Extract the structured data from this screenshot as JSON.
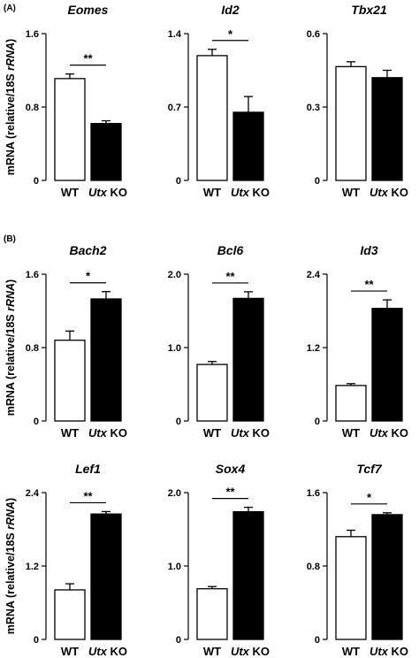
{
  "panels": [
    {
      "label": "(A)"
    },
    {
      "label": "(B)"
    }
  ],
  "ylabel": {
    "prefix": "mRNA (relative/18S ",
    "italic": "rRNA",
    "suffix": ")"
  },
  "categories": [
    {
      "plain": "WT",
      "italic": ""
    },
    {
      "plain": " KO",
      "italic": "Utx"
    }
  ],
  "colors": {
    "wt_fill": "#ffffff",
    "ko_fill": "#000000",
    "stroke": "#000000"
  },
  "chart_data": [
    {
      "type": "bar",
      "title": "Eomes",
      "ylim": [
        0,
        1.6
      ],
      "yticks": [
        "0",
        "0.8",
        "1.6"
      ],
      "series": [
        {
          "name": "WT",
          "values": [
            1.11
          ]
        },
        {
          "name": "Utx KO",
          "values": [
            0.62
          ]
        }
      ],
      "errors": [
        0.05,
        0.03
      ],
      "significance": "**"
    },
    {
      "type": "bar",
      "title": "Id2",
      "ylim": [
        0,
        1.4
      ],
      "yticks": [
        "0",
        "0.7",
        "1.4"
      ],
      "series": [
        {
          "name": "WT",
          "values": [
            1.19
          ]
        },
        {
          "name": "Utx KO",
          "values": [
            0.65
          ]
        }
      ],
      "errors": [
        0.06,
        0.15
      ],
      "significance": "*"
    },
    {
      "type": "bar",
      "title": "Tbx21",
      "ylim": [
        0,
        0.6
      ],
      "yticks": [
        "0",
        "0.3",
        "0.6"
      ],
      "series": [
        {
          "name": "WT",
          "values": [
            0.465
          ]
        },
        {
          "name": "Utx KO",
          "values": [
            0.42
          ]
        }
      ],
      "errors": [
        0.02,
        0.03
      ],
      "significance": ""
    },
    {
      "type": "bar",
      "title": "Bach2",
      "ylim": [
        0,
        1.6
      ],
      "yticks": [
        "0",
        "0.8",
        "1.6"
      ],
      "series": [
        {
          "name": "WT",
          "values": [
            0.88
          ]
        },
        {
          "name": "Utx KO",
          "values": [
            1.33
          ]
        }
      ],
      "errors": [
        0.1,
        0.08
      ],
      "significance": "*"
    },
    {
      "type": "bar",
      "title": "Bcl6",
      "ylim": [
        0,
        2.0
      ],
      "yticks": [
        "0",
        "1.0",
        "2.0"
      ],
      "series": [
        {
          "name": "WT",
          "values": [
            0.77
          ]
        },
        {
          "name": "Utx KO",
          "values": [
            1.67
          ]
        }
      ],
      "errors": [
        0.04,
        0.09
      ],
      "significance": "**"
    },
    {
      "type": "bar",
      "title": "Id3",
      "ylim": [
        0,
        2.4
      ],
      "yticks": [
        "0",
        "1.2",
        "2.4"
      ],
      "series": [
        {
          "name": "WT",
          "values": [
            0.58
          ]
        },
        {
          "name": "Utx KO",
          "values": [
            1.84
          ]
        }
      ],
      "errors": [
        0.03,
        0.14
      ],
      "significance": "**"
    },
    {
      "type": "bar",
      "title": "Lef1",
      "ylim": [
        0,
        2.4
      ],
      "yticks": [
        "0",
        "1.2",
        "2.4"
      ],
      "series": [
        {
          "name": "WT",
          "values": [
            0.81
          ]
        },
        {
          "name": "Utx KO",
          "values": [
            2.05
          ]
        }
      ],
      "errors": [
        0.1,
        0.04
      ],
      "significance": "**"
    },
    {
      "type": "bar",
      "title": "Sox4",
      "ylim": [
        0,
        2.0
      ],
      "yticks": [
        "0",
        "1.0",
        "2.0"
      ],
      "series": [
        {
          "name": "WT",
          "values": [
            0.69
          ]
        },
        {
          "name": "Utx KO",
          "values": [
            1.74
          ]
        }
      ],
      "errors": [
        0.03,
        0.06
      ],
      "significance": "**"
    },
    {
      "type": "bar",
      "title": "Tcf7",
      "ylim": [
        0,
        1.6
      ],
      "yticks": [
        "0",
        "0.8",
        "1.6"
      ],
      "series": [
        {
          "name": "WT",
          "values": [
            1.12
          ]
        },
        {
          "name": "Utx KO",
          "values": [
            1.36
          ]
        }
      ],
      "errors": [
        0.07,
        0.02
      ],
      "significance": "*"
    }
  ]
}
